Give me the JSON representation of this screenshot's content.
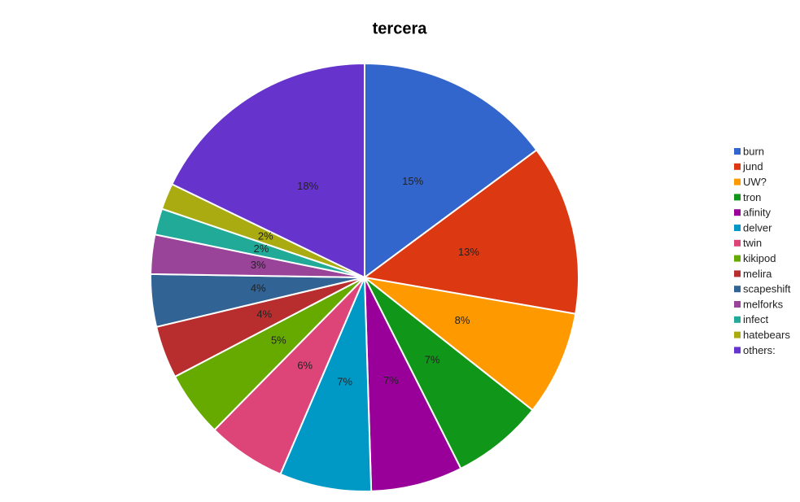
{
  "chart_data": {
    "type": "pie",
    "title": "tercera",
    "categories": [
      "burn",
      "jund",
      "UW?",
      "tron",
      "afinity",
      "delver",
      "twin",
      "kikipod",
      "melira",
      "scapeshift",
      "melforks",
      "infect",
      "hatebears",
      "others:"
    ],
    "values": [
      15,
      13,
      8,
      7,
      7,
      7,
      6,
      5,
      4,
      4,
      3,
      2,
      2,
      18
    ],
    "value_labels": [
      "15%",
      "13%",
      "8%",
      "7%",
      "7%",
      "7%",
      "6%",
      "5%",
      "4%",
      "4%",
      "3%",
      "2%",
      "2%",
      "18%"
    ],
    "colors": [
      "#3366cc",
      "#dc3912",
      "#ff9900",
      "#109618",
      "#990099",
      "#0099c6",
      "#dd4477",
      "#66aa00",
      "#b82e2e",
      "#316395",
      "#994499",
      "#22aa99",
      "#aaaa11",
      "#6633cc"
    ],
    "legend": "right"
  }
}
